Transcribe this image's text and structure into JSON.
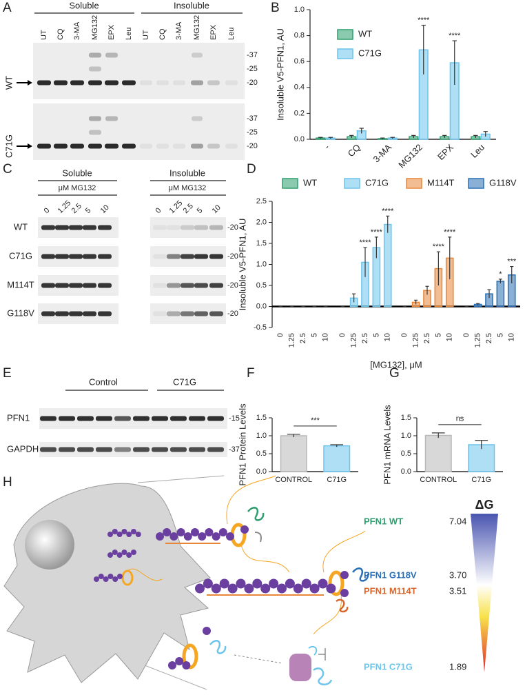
{
  "panels": {
    "A": {
      "label": "A",
      "headers": [
        "Soluble",
        "Insoluble"
      ],
      "lanes": [
        "UT",
        "CQ",
        "3-MA",
        "MG132",
        "EPX",
        "Leu"
      ],
      "rows": [
        "WT",
        "C71G"
      ],
      "markers": [
        "-37",
        "-25",
        "-20"
      ]
    },
    "C": {
      "label": "C",
      "headers": [
        "Soluble",
        "Insoluble"
      ],
      "treatment": "μM MG132",
      "lanes": [
        "0",
        "1.25",
        "2.5",
        "5",
        "10"
      ],
      "rows": [
        "WT",
        "C71G",
        "M114T",
        "G118V"
      ],
      "marker": "-20"
    },
    "E": {
      "label": "E",
      "headers": [
        "Control",
        "C71G"
      ],
      "rows": [
        "PFN1",
        "GAPDH"
      ],
      "markers": [
        "-15",
        "-37"
      ]
    },
    "H": {
      "label": "H",
      "title": "ΔG",
      "variants": [
        {
          "name": "PFN1 WT",
          "color": "#2e9e6e",
          "dG": 7.04
        },
        {
          "name": "PFN1 G118V",
          "color": "#2a6fb5",
          "dG": {
            "value": 3.7,
            "label": "3.70"
          }
        },
        {
          "name": "PFN1 M114T",
          "color": "#d9662a",
          "dG": 3.51
        },
        {
          "name": "PFN1 C71G",
          "color": "#6cc4ec",
          "dG": 1.89
        }
      ]
    }
  },
  "chart_data": [
    {
      "type": "bar",
      "label": "B",
      "ylabel": "Insoluble V5-PFN1, AU",
      "categories": [
        "-",
        "CQ",
        "3-MA",
        "MG132",
        "EPX",
        "Leu"
      ],
      "ylim": [
        0,
        1
      ],
      "yticks": [
        {
          "value": 0,
          "label": "0.0"
        },
        0.2,
        0.4,
        0.6,
        0.8,
        {
          "value": 1,
          "label": "1.0"
        }
      ],
      "series": [
        {
          "name": "WT",
          "color": "#2e9e6e",
          "values": [
            0.01,
            0.02,
            0.005,
            0.02,
            0.02,
            0.02
          ],
          "errors": [
            0.005,
            0.01,
            0.005,
            0.01,
            0.01,
            0.01
          ]
        },
        {
          "name": "C71G",
          "color": "#6cc4ec",
          "values": [
            0.01,
            0.065,
            0.01,
            0.69,
            0.59,
            0.04
          ],
          "errors": [
            0.005,
            0.02,
            0.005,
            0.19,
            0.17,
            0.02
          ],
          "annotations": [
            null,
            null,
            null,
            "****",
            "****",
            null
          ]
        }
      ]
    },
    {
      "type": "bar",
      "label": "D",
      "ylabel": "Insoluble V5-PFN1, AU",
      "xlabel": "[MG132], μM",
      "categories": [
        "0",
        "1.25",
        "2.5",
        "5",
        "10"
      ],
      "ylim": [
        -0.5,
        2.5
      ],
      "yticks": [
        -0.5,
        {
          "value": 0,
          "label": "0.0"
        },
        0.5,
        {
          "value": 1,
          "label": "1.0"
        },
        1.5,
        {
          "value": 2,
          "label": "2.0"
        },
        2.5
      ],
      "series": [
        {
          "name": "WT",
          "color": "#2e9e6e",
          "values": [
            0,
            0,
            0,
            0,
            0
          ],
          "errors": [
            0,
            0,
            0,
            0,
            0
          ]
        },
        {
          "name": "C71G",
          "color": "#6cc4ec",
          "values": [
            0,
            0.2,
            1.05,
            1.4,
            1.95
          ],
          "errors": [
            0,
            0.1,
            0.35,
            0.25,
            0.2
          ],
          "annotations": [
            null,
            null,
            "****",
            "****",
            "****"
          ]
        },
        {
          "name": "M114T",
          "color": "#e8873a",
          "values": [
            0,
            0.1,
            0.38,
            0.9,
            1.15
          ],
          "errors": [
            0,
            0.05,
            0.1,
            0.4,
            0.5
          ],
          "annotations": [
            null,
            null,
            null,
            "****",
            "****"
          ]
        },
        {
          "name": "G118V",
          "color": "#2a6fb5",
          "values": [
            0,
            0.05,
            0.3,
            0.6,
            0.75
          ],
          "errors": [
            0,
            0.02,
            0.1,
            0.05,
            0.2
          ],
          "annotations": [
            null,
            null,
            null,
            "*",
            "***"
          ]
        }
      ]
    },
    {
      "type": "bar",
      "label": "F",
      "ylabel": "PFN1 Protein Levels",
      "categories": [
        "CONTROL",
        "C71G"
      ],
      "ylim": [
        0,
        1.5
      ],
      "yticks": [
        {
          "value": 0,
          "label": "0.0"
        },
        0.5,
        {
          "value": 1,
          "label": "1.0"
        },
        1.5
      ],
      "significance": "***",
      "series": [
        {
          "colors": [
            "#b8b8b8",
            "#6cc4ec"
          ],
          "values": [
            1.0,
            0.72
          ],
          "errors": [
            0.04,
            0.03
          ]
        }
      ]
    },
    {
      "type": "bar",
      "label": "G",
      "ylabel": "PFN1 mRNA Levels",
      "categories": [
        "CONTROL",
        "C71G"
      ],
      "ylim": [
        0,
        1.5
      ],
      "yticks": [
        {
          "value": 0,
          "label": "0.0"
        },
        0.5,
        {
          "value": 1,
          "label": "1.0"
        },
        1.5
      ],
      "significance": "ns",
      "series": [
        {
          "colors": [
            "#b8b8b8",
            "#6cc4ec"
          ],
          "values": [
            1.01,
            0.75
          ],
          "errors": [
            0.07,
            0.12
          ]
        }
      ]
    }
  ]
}
